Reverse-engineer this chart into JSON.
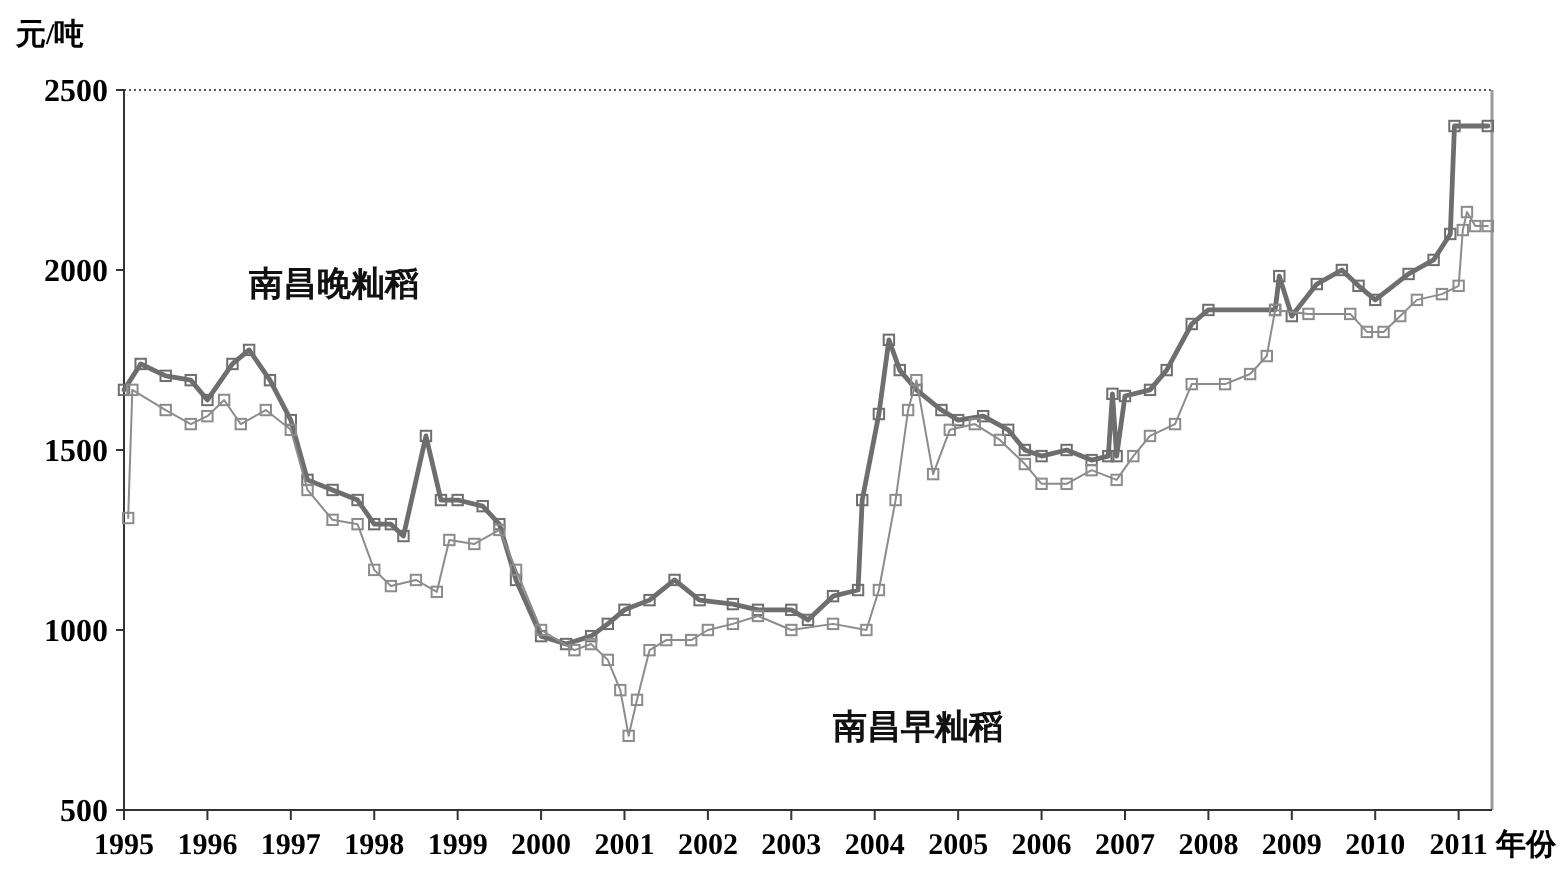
{
  "chart_data": {
    "type": "line",
    "xlabel": "年份",
    "ylabel": "元/吨",
    "xlim": [
      1995,
      2011.4
    ],
    "xticks": [
      1995,
      1996,
      1997,
      1998,
      1999,
      2000,
      2001,
      2002,
      2003,
      2004,
      2005,
      2006,
      2007,
      2008,
      2009,
      2010,
      2011
    ],
    "ylim": [
      500,
      2500
    ],
    "yticks": [
      500,
      1000,
      1500,
      2000,
      2500
    ],
    "grid": false,
    "legend": false,
    "marker": "square",
    "line_style": "solid",
    "series": [
      {
        "name": "南昌晚籼稻",
        "color": "#6e6e6e",
        "x": [
          1995.0,
          1995.2,
          1995.5,
          1995.8,
          1996.0,
          1996.3,
          1996.5,
          1996.75,
          1997.0,
          1997.2,
          1997.5,
          1997.8,
          1998.0,
          1998.2,
          1998.35,
          1998.62,
          1998.8,
          1999.0,
          1999.3,
          1999.5,
          1999.7,
          2000.0,
          2000.3,
          2000.6,
          2000.8,
          2001.0,
          2001.3,
          2001.6,
          2001.9,
          2002.3,
          2002.6,
          2003.0,
          2003.2,
          2003.5,
          2003.8,
          2003.85,
          2004.05,
          2004.17,
          2004.3,
          2004.5,
          2004.8,
          2005.0,
          2005.3,
          2005.6,
          2005.8,
          2006.0,
          2006.3,
          2006.6,
          2006.8,
          2006.85,
          2006.9,
          2007.0,
          2007.3,
          2007.5,
          2007.8,
          2008.0,
          2008.8,
          2008.85,
          2009.0,
          2009.3,
          2009.6,
          2009.8,
          2010.0,
          2010.4,
          2010.7,
          2010.9,
          2010.95,
          2011.35
        ],
        "values": [
          1667,
          1739,
          1706,
          1694,
          1639,
          1739,
          1778,
          1694,
          1583,
          1417,
          1389,
          1361,
          1294,
          1294,
          1261,
          1539,
          1361,
          1361,
          1344,
          1294,
          1139,
          983,
          961,
          983,
          1017,
          1056,
          1083,
          1139,
          1083,
          1072,
          1056,
          1056,
          1028,
          1094,
          1111,
          1361,
          1600,
          1806,
          1722,
          1667,
          1611,
          1583,
          1594,
          1556,
          1500,
          1483,
          1500,
          1472,
          1483,
          1656,
          1483,
          1650,
          1667,
          1722,
          1850,
          1889,
          1889,
          1983,
          1872,
          1961,
          2000,
          1956,
          1917,
          1989,
          2028,
          2100,
          2400,
          2400
        ]
      },
      {
        "name": "南昌早籼稻",
        "color": "#8c8c8c",
        "x": [
          1995.05,
          1995.1,
          1995.5,
          1995.8,
          1996.0,
          1996.2,
          1996.4,
          1996.7,
          1997.0,
          1997.2,
          1997.5,
          1997.8,
          1998.0,
          1998.2,
          1998.5,
          1998.75,
          1998.9,
          1999.2,
          1999.5,
          1999.7,
          2000.0,
          2000.4,
          2000.6,
          2000.8,
          2000.95,
          2001.05,
          2001.15,
          2001.3,
          2001.5,
          2001.8,
          2002.0,
          2002.3,
          2002.6,
          2003.0,
          2003.5,
          2003.9,
          2004.05,
          2004.25,
          2004.4,
          2004.5,
          2004.7,
          2004.9,
          2005.2,
          2005.5,
          2005.8,
          2006.0,
          2006.3,
          2006.6,
          2006.9,
          2007.1,
          2007.3,
          2007.6,
          2007.8,
          2008.2,
          2008.5,
          2008.7,
          2008.8,
          2009.2,
          2009.7,
          2009.9,
          2010.1,
          2010.3,
          2010.5,
          2010.8,
          2011.0,
          2011.05,
          2011.1,
          2011.2,
          2011.35
        ],
        "values": [
          1311,
          1667,
          1611,
          1572,
          1594,
          1639,
          1572,
          1611,
          1556,
          1389,
          1306,
          1294,
          1167,
          1122,
          1139,
          1106,
          1250,
          1239,
          1278,
          1167,
          1000,
          944,
          961,
          917,
          833,
          706,
          806,
          944,
          972,
          972,
          1000,
          1017,
          1039,
          1000,
          1017,
          1000,
          1111,
          1361,
          1611,
          1694,
          1433,
          1556,
          1572,
          1528,
          1461,
          1406,
          1406,
          1444,
          1417,
          1483,
          1539,
          1572,
          1683,
          1683,
          1711,
          1761,
          1889,
          1878,
          1878,
          1828,
          1828,
          1872,
          1917,
          1933,
          1956,
          2111,
          2161,
          2122,
          2122
        ]
      }
    ]
  }
}
